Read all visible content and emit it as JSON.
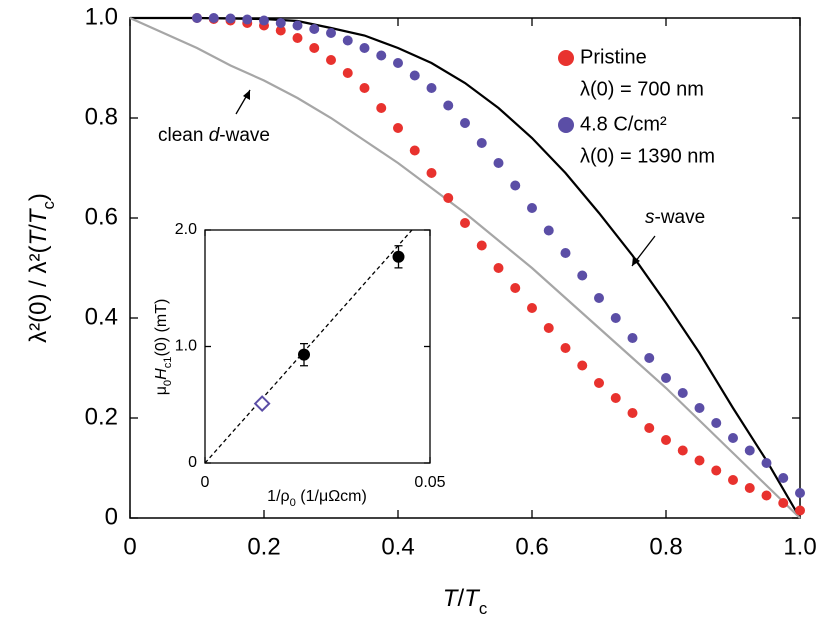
{
  "chart_data": [
    {
      "type": "scatter",
      "x_label": [
        "T",
        "/",
        "T",
        "c"
      ],
      "y_label": [
        "λ²(0) / λ²(",
        "T",
        "/",
        "T",
        "c",
        ")"
      ],
      "xlim": [
        0,
        1
      ],
      "ylim": [
        0,
        1
      ],
      "xticks": [
        0,
        0.2,
        0.4,
        0.6,
        0.8,
        {
          "value": 1,
          "label": "1.0"
        }
      ],
      "yticks": [
        0,
        0.2,
        0.4,
        0.6,
        0.8,
        {
          "value": 1,
          "label": "1.0"
        }
      ],
      "series": [
        {
          "name": "Pristine",
          "note": "λ(0) = 700 nm",
          "color": "#e8322e",
          "x": [
            0.1,
            0.125,
            0.15,
            0.175,
            0.2,
            0.225,
            0.25,
            0.275,
            0.3,
            0.325,
            0.35,
            0.375,
            0.4,
            0.425,
            0.45,
            0.475,
            0.5,
            0.525,
            0.55,
            0.575,
            0.6,
            0.625,
            0.65,
            0.675,
            0.7,
            0.725,
            0.75,
            0.775,
            0.8,
            0.825,
            0.85,
            0.875,
            0.9,
            0.925,
            0.95,
            0.975,
            1.0
          ],
          "values": [
            1.0,
            0.998,
            0.995,
            0.99,
            0.985,
            0.975,
            0.96,
            0.94,
            0.916,
            0.89,
            0.86,
            0.82,
            0.78,
            0.735,
            0.69,
            0.64,
            0.59,
            0.545,
            0.5,
            0.46,
            0.42,
            0.38,
            0.34,
            0.305,
            0.27,
            0.24,
            0.21,
            0.18,
            0.156,
            0.135,
            0.115,
            0.095,
            0.076,
            0.06,
            0.045,
            0.03,
            0.015
          ]
        },
        {
          "name": "4.8 C/cm²",
          "note": "λ(0) = 1390 nm",
          "color": "#5b4ea6",
          "x": [
            0.1,
            0.125,
            0.15,
            0.175,
            0.2,
            0.225,
            0.25,
            0.275,
            0.3,
            0.325,
            0.35,
            0.375,
            0.4,
            0.425,
            0.45,
            0.475,
            0.5,
            0.525,
            0.55,
            0.575,
            0.6,
            0.625,
            0.65,
            0.675,
            0.7,
            0.725,
            0.75,
            0.775,
            0.8,
            0.825,
            0.85,
            0.875,
            0.9,
            0.925,
            0.95,
            0.975,
            1.0
          ],
          "values": [
            1.0,
            1.0,
            0.999,
            0.997,
            0.995,
            0.99,
            0.985,
            0.978,
            0.97,
            0.955,
            0.94,
            0.925,
            0.91,
            0.885,
            0.86,
            0.825,
            0.79,
            0.75,
            0.71,
            0.665,
            0.62,
            0.575,
            0.53,
            0.485,
            0.44,
            0.4,
            0.36,
            0.32,
            0.28,
            0.25,
            0.22,
            0.19,
            0.16,
            0.135,
            0.11,
            0.08,
            0.05
          ]
        }
      ],
      "curves": [
        {
          "label": [
            "s",
            "-wave"
          ],
          "color": "#000000",
          "x": [
            0,
            0.05,
            0.1,
            0.15,
            0.2,
            0.25,
            0.3,
            0.35,
            0.4,
            0.45,
            0.5,
            0.55,
            0.6,
            0.65,
            0.7,
            0.75,
            0.8,
            0.85,
            0.9,
            0.95,
            1.0
          ],
          "values": [
            1,
            1,
            1,
            0.999,
            0.998,
            0.994,
            0.98,
            0.965,
            0.94,
            0.91,
            0.87,
            0.82,
            0.76,
            0.69,
            0.61,
            0.525,
            0.43,
            0.33,
            0.22,
            0.115,
            0
          ]
        },
        {
          "label": [
            "clean ",
            "d",
            "-wave"
          ],
          "color": "#a6a6a6",
          "x": [
            0,
            0.05,
            0.1,
            0.15,
            0.2,
            0.25,
            0.3,
            0.35,
            0.4,
            0.45,
            0.5,
            0.55,
            0.6,
            0.65,
            0.7,
            0.75,
            0.8,
            0.85,
            0.9,
            0.95,
            1.0
          ],
          "values": [
            1,
            0.97,
            0.94,
            0.905,
            0.875,
            0.84,
            0.8,
            0.755,
            0.71,
            0.66,
            0.61,
            0.555,
            0.5,
            0.44,
            0.38,
            0.32,
            0.26,
            0.195,
            0.13,
            0.065,
            0
          ]
        }
      ]
    },
    {
      "type": "scatter",
      "x_label": [
        "1/ρ",
        "0",
        " (1/μΩcm)"
      ],
      "y_label": [
        "μ",
        "0",
        "H",
        "c1",
        "(0) (mT)"
      ],
      "xlim": [
        0,
        0.05
      ],
      "ylim": [
        0,
        2
      ],
      "xticks": [
        0,
        0.05
      ],
      "yticks": [
        0,
        {
          "value": 1,
          "label": "1.0"
        },
        {
          "value": 2,
          "label": "2.0"
        }
      ],
      "points": {
        "color": "#000000",
        "x": [
          0.022,
          0.043
        ],
        "values": [
          0.93,
          1.77
        ],
        "errors": [
          0.095,
          0.095
        ]
      },
      "open_points": {
        "color": "#5b4ea6",
        "x": [
          0.0127
        ],
        "values": [
          0.51
        ]
      },
      "fit": {
        "color": "#000000",
        "x": [
          0,
          0.046
        ],
        "values": [
          0,
          2.0
        ]
      }
    }
  ]
}
